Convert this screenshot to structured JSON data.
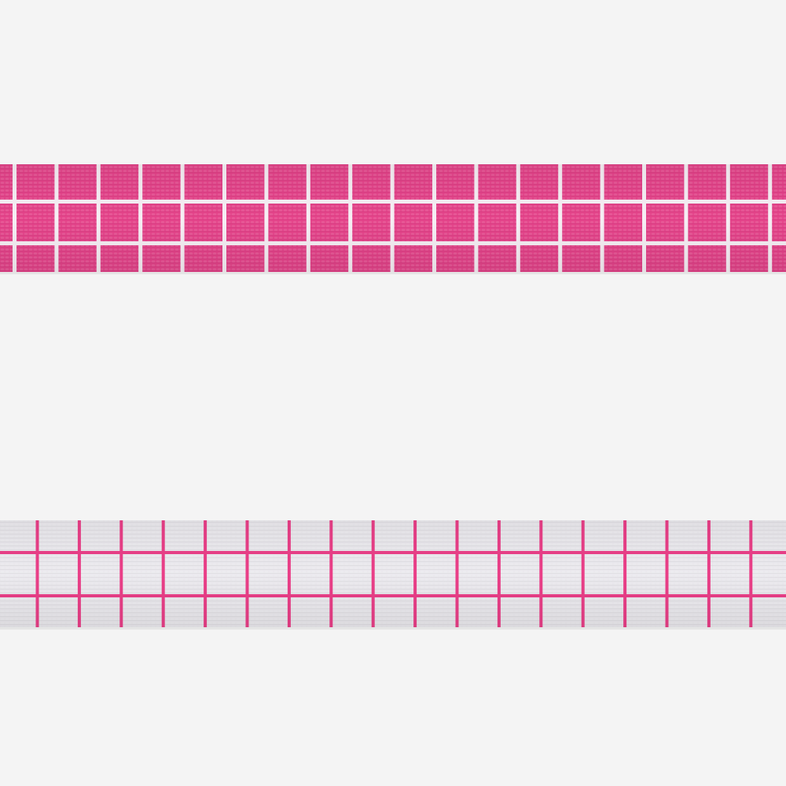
{
  "colors": {
    "background": "#f4f4f4",
    "pink": "#e5438a",
    "pink_line": "#ea3f88",
    "white_strap": "#ebe9ee",
    "white_line": "#f6eef4"
  },
  "straps": [
    {
      "name": "pink-strap-with-white-grid",
      "base": "pink",
      "grid": "white_line"
    },
    {
      "name": "white-strap-with-pink-grid",
      "base": "white_strap",
      "grid": "pink_line"
    }
  ]
}
